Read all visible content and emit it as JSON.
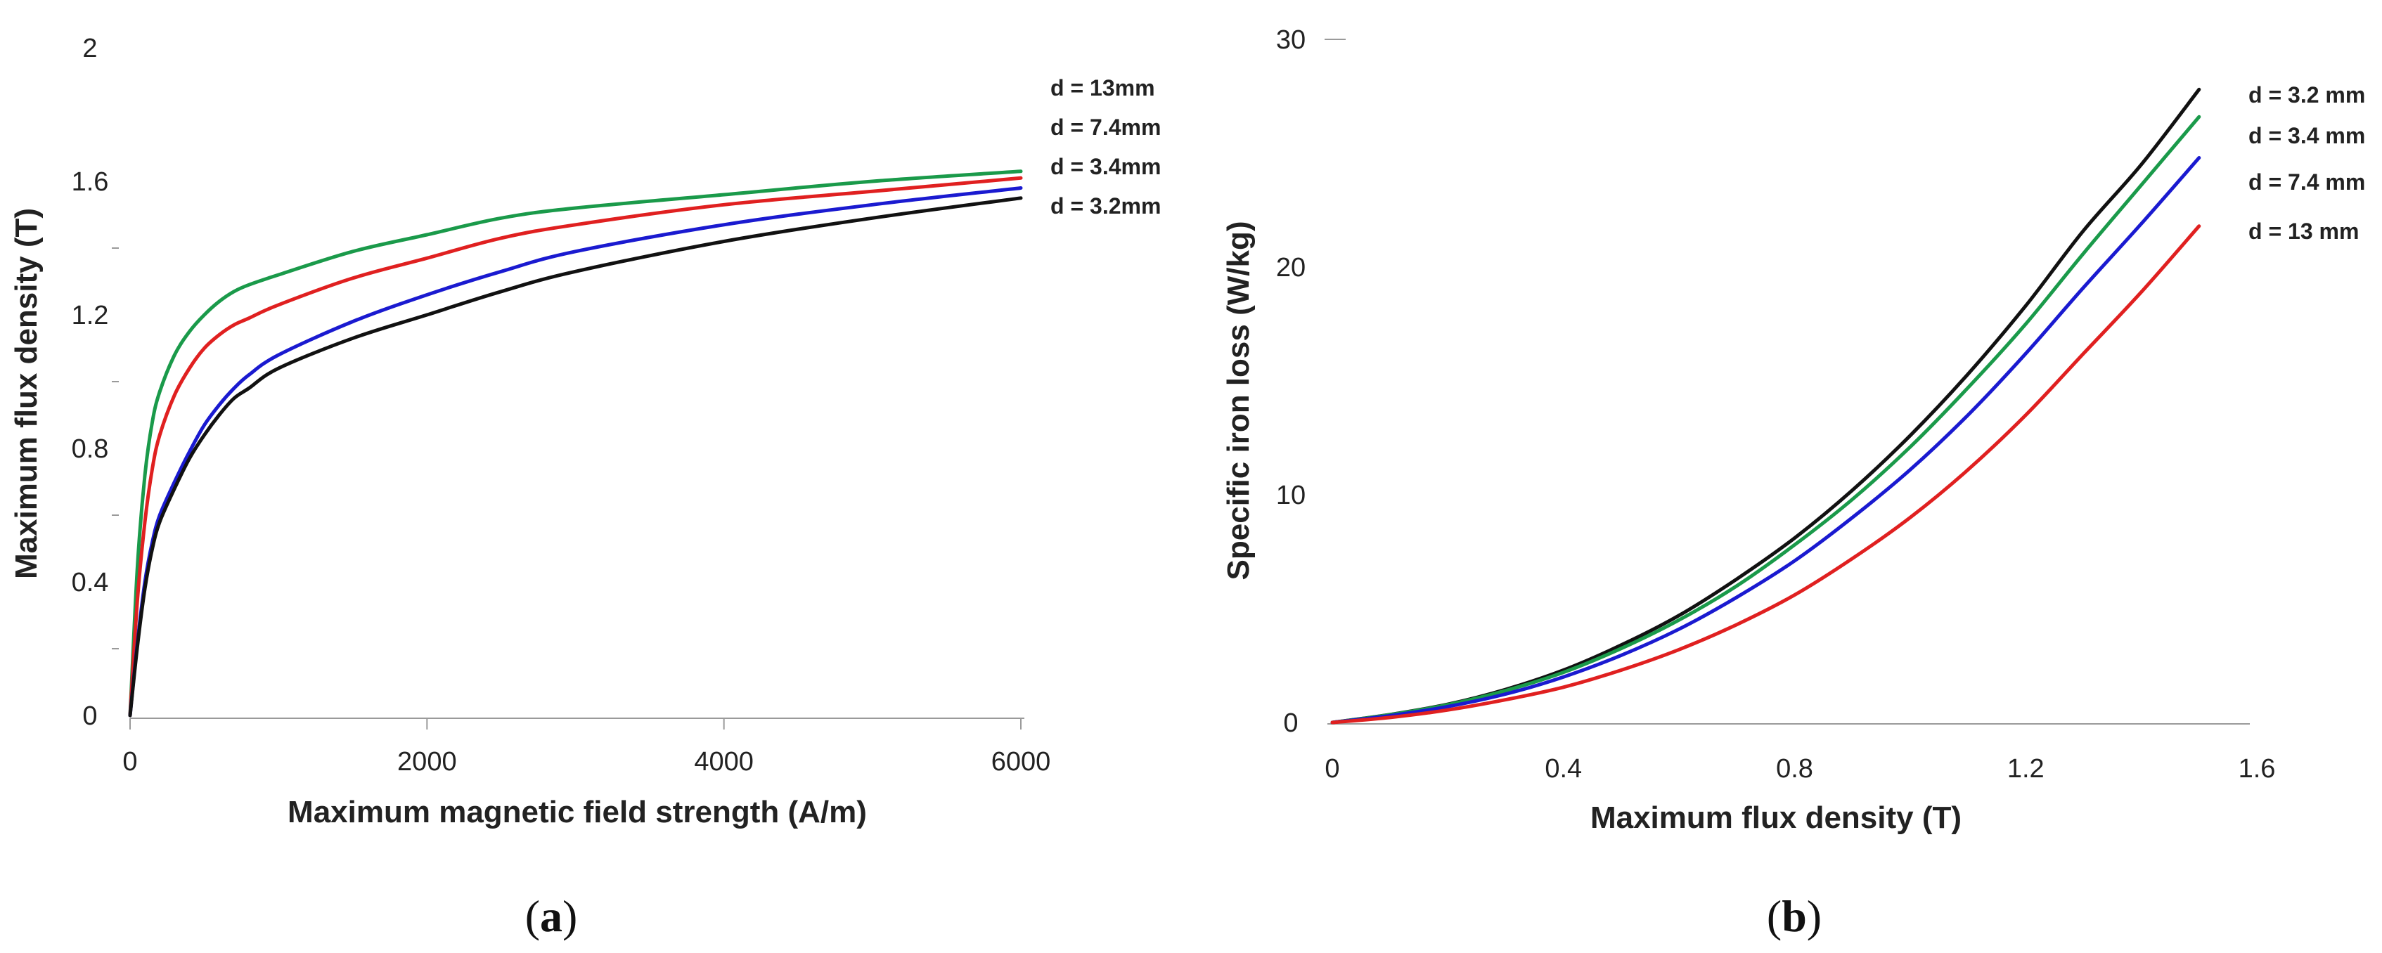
{
  "chart_data": [
    {
      "type": "line",
      "panel": "(a)",
      "panel_letter": "a",
      "xlabel": "Maximum magnetic field strength (A/m)",
      "ylabel": "Maximum flux density (T)",
      "xlim": [
        0,
        6000
      ],
      "ylim": [
        0,
        2
      ],
      "xticks": [
        0,
        2000,
        4000,
        6000
      ],
      "yticks": [
        0,
        0.4,
        0.8,
        1.2,
        1.6,
        2
      ],
      "ytick_labels": [
        "0",
        "0.4",
        "0.8",
        "1.2",
        "1.6",
        "2"
      ],
      "grid": false,
      "series": [
        {
          "name": "d = 13mm",
          "color": "#1a9a4a",
          "x": [
            0,
            50,
            100,
            150,
            200,
            300,
            400,
            500,
            600,
            700,
            800,
            1000,
            1500,
            2000,
            2500,
            3000,
            4000,
            5000,
            6000
          ],
          "y": [
            0,
            0.45,
            0.72,
            0.88,
            0.97,
            1.08,
            1.15,
            1.2,
            1.24,
            1.27,
            1.29,
            1.32,
            1.39,
            1.44,
            1.49,
            1.52,
            1.56,
            1.6,
            1.63
          ]
        },
        {
          "name": "d = 7.4mm",
          "color": "#e02020",
          "x": [
            0,
            50,
            100,
            150,
            200,
            300,
            400,
            500,
            600,
            700,
            800,
            1000,
            1500,
            2000,
            2500,
            3000,
            4000,
            5000,
            6000
          ],
          "y": [
            0,
            0.35,
            0.58,
            0.74,
            0.84,
            0.96,
            1.04,
            1.1,
            1.14,
            1.17,
            1.19,
            1.23,
            1.31,
            1.37,
            1.43,
            1.47,
            1.53,
            1.57,
            1.61
          ]
        },
        {
          "name": "d = 3.4mm",
          "color": "#1a1ad0",
          "x": [
            0,
            50,
            100,
            150,
            200,
            300,
            400,
            500,
            600,
            700,
            800,
            1000,
            1500,
            2000,
            2500,
            3000,
            4000,
            5000,
            6000
          ],
          "y": [
            0,
            0.22,
            0.4,
            0.52,
            0.6,
            0.7,
            0.79,
            0.87,
            0.93,
            0.98,
            1.02,
            1.08,
            1.18,
            1.26,
            1.33,
            1.39,
            1.47,
            1.53,
            1.58
          ]
        },
        {
          "name": "d = 3.2mm",
          "color": "#111111",
          "x": [
            0,
            50,
            100,
            150,
            200,
            300,
            400,
            500,
            600,
            700,
            800,
            1000,
            1500,
            2000,
            2500,
            3000,
            4000,
            5000,
            6000
          ],
          "y": [
            0,
            0.21,
            0.38,
            0.5,
            0.58,
            0.68,
            0.77,
            0.84,
            0.9,
            0.95,
            0.98,
            1.04,
            1.13,
            1.2,
            1.27,
            1.33,
            1.42,
            1.49,
            1.55
          ]
        }
      ]
    },
    {
      "type": "line",
      "panel": "(b)",
      "panel_letter": "b",
      "xlabel": "Maximum flux density (T)",
      "ylabel": "Specific iron loss (W/kg)",
      "xlim": [
        0,
        1.6
      ],
      "ylim": [
        0,
        30
      ],
      "xticks": [
        0,
        0.4,
        0.8,
        1.2,
        1.6
      ],
      "xtick_labels": [
        "0",
        "0.4",
        "0.8",
        "1.2",
        "1.6"
      ],
      "yticks": [
        0,
        10,
        20,
        30
      ],
      "grid": false,
      "series": [
        {
          "name": "d = 3.2 mm",
          "color": "#111111",
          "x": [
            0,
            0.1,
            0.2,
            0.3,
            0.4,
            0.5,
            0.6,
            0.7,
            0.8,
            0.9,
            1.0,
            1.1,
            1.2,
            1.3,
            1.4,
            1.5
          ],
          "y": [
            0,
            0.35,
            0.8,
            1.45,
            2.3,
            3.4,
            4.7,
            6.3,
            8.1,
            10.2,
            12.6,
            15.3,
            18.3,
            21.6,
            24.5,
            27.8
          ]
        },
        {
          "name": "d = 3.4 mm",
          "color": "#1a9a4a",
          "x": [
            0,
            0.1,
            0.2,
            0.3,
            0.4,
            0.5,
            0.6,
            0.7,
            0.8,
            0.9,
            1.0,
            1.1,
            1.2,
            1.3,
            1.4,
            1.5
          ],
          "y": [
            0,
            0.34,
            0.78,
            1.4,
            2.2,
            3.25,
            4.5,
            6.0,
            7.8,
            9.8,
            12.1,
            14.7,
            17.5,
            20.6,
            23.6,
            26.6
          ]
        },
        {
          "name": "d = 7.4 mm",
          "color": "#1a1ad0",
          "x": [
            0,
            0.1,
            0.2,
            0.3,
            0.4,
            0.5,
            0.6,
            0.7,
            0.8,
            0.9,
            1.0,
            1.1,
            1.2,
            1.3,
            1.4,
            1.5
          ],
          "y": [
            0,
            0.3,
            0.7,
            1.25,
            2.0,
            2.95,
            4.1,
            5.5,
            7.1,
            9.0,
            11.1,
            13.5,
            16.2,
            19.1,
            21.9,
            24.8
          ]
        },
        {
          "name": "d = 13 mm",
          "color": "#e02020",
          "x": [
            0,
            0.1,
            0.2,
            0.3,
            0.4,
            0.5,
            0.6,
            0.7,
            0.8,
            0.9,
            1.0,
            1.1,
            1.2,
            1.3,
            1.4,
            1.5
          ],
          "y": [
            0,
            0.22,
            0.55,
            1.0,
            1.55,
            2.3,
            3.2,
            4.3,
            5.6,
            7.2,
            9.0,
            11.1,
            13.5,
            16.2,
            18.9,
            21.8
          ]
        }
      ]
    }
  ]
}
